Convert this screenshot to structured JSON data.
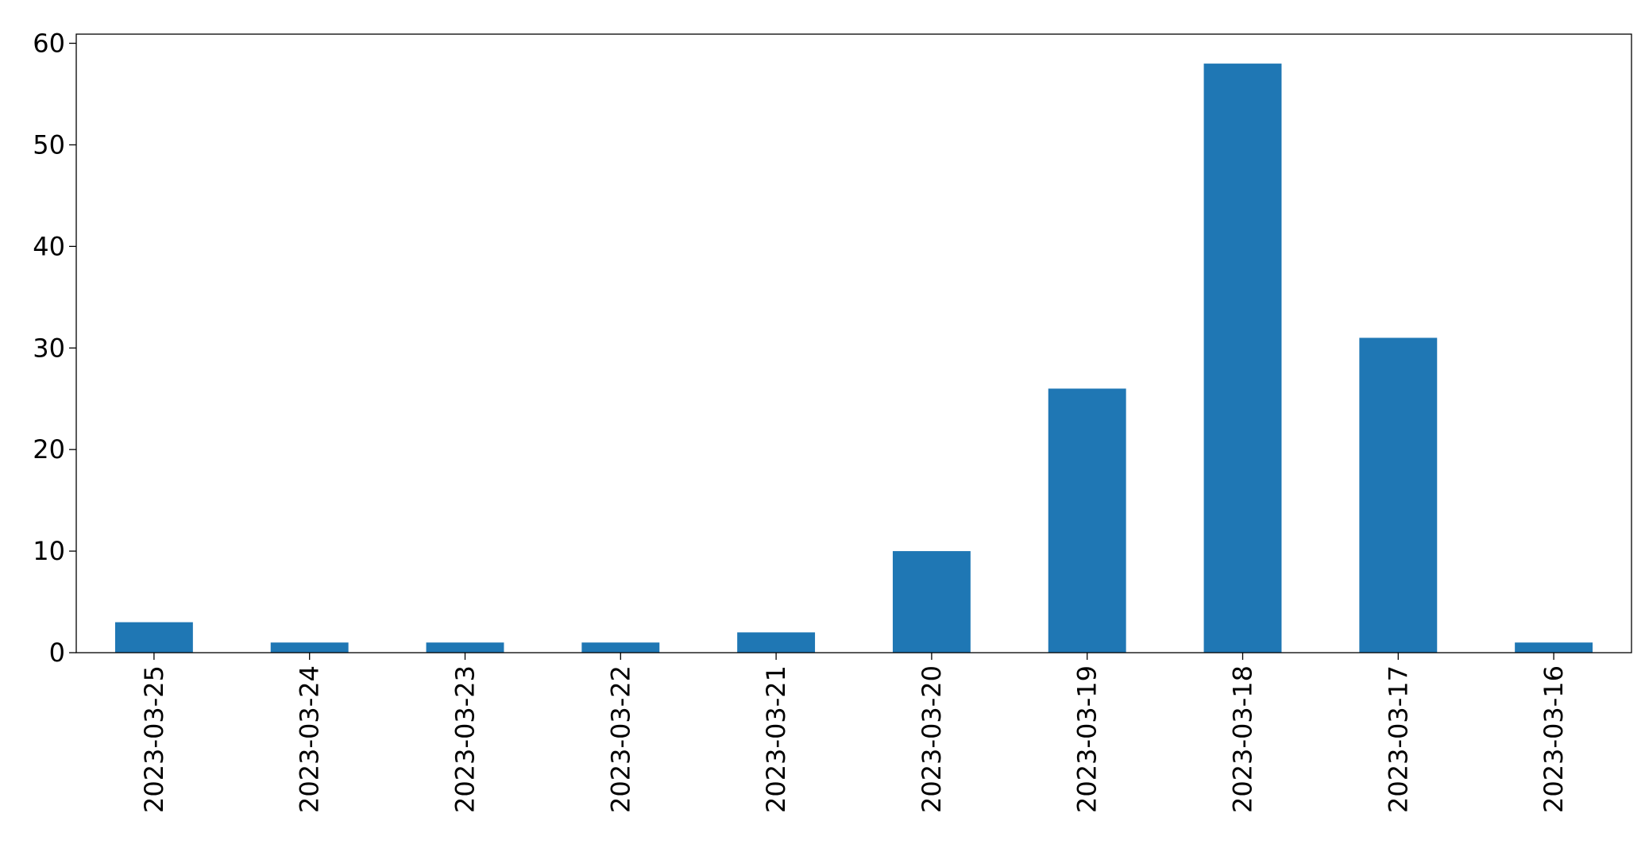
{
  "chart_data": {
    "type": "bar",
    "categories": [
      "2023-03-25",
      "2023-03-24",
      "2023-03-23",
      "2023-03-22",
      "2023-03-21",
      "2023-03-20",
      "2023-03-19",
      "2023-03-18",
      "2023-03-17",
      "2023-03-16"
    ],
    "values": [
      3,
      1,
      1,
      1,
      2,
      10,
      26,
      58,
      31,
      1
    ],
    "color": "#1f77b4",
    "ylim": [
      0,
      60.9
    ],
    "yticks": [
      0,
      10,
      20,
      30,
      40,
      50,
      60
    ],
    "grid": false
  }
}
